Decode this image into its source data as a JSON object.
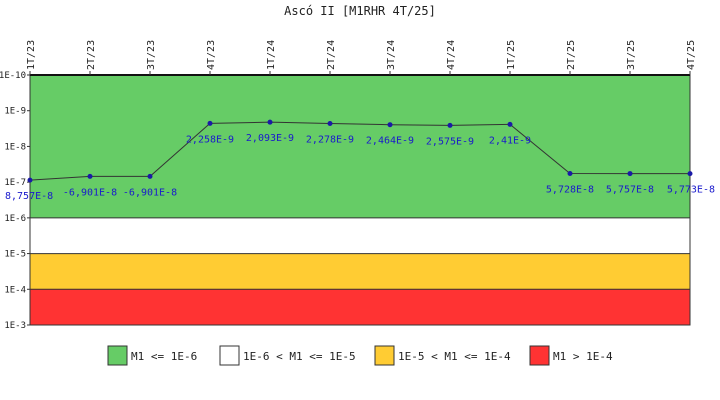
{
  "chart_data": {
    "type": "line",
    "title": "Ascó II [M1RHR 4T/25]",
    "x": [
      "1T/23",
      "2T/23",
      "3T/23",
      "4T/23",
      "1T/24",
      "2T/24",
      "3T/24",
      "4T/24",
      "1T/25",
      "2T/25",
      "3T/25",
      "4T/25"
    ],
    "values": [
      8.757e-08,
      -6.901e-08,
      -6.901e-08,
      2.258e-09,
      2.093e-09,
      2.278e-09,
      2.464e-09,
      2.575e-09,
      2.41e-09,
      5.728e-08,
      5.757e-08,
      5.773e-08
    ],
    "point_labels": [
      "8,757E-8",
      "-6,901E-8",
      "-6,901E-8",
      "2,258E-9",
      "2,093E-9",
      "2,278E-9",
      "2,464E-9",
      "2,575E-9",
      "2,41E-9",
      "5,728E-8",
      "5,757E-8",
      "5,773E-8"
    ],
    "y_scale": "log",
    "y_ticks": [
      "1E-10",
      "1E-9",
      "1E-8",
      "1E-7",
      "1E-6",
      "1E-5",
      "1E-4",
      "1E-3"
    ],
    "bands": [
      {
        "label": "M1 <= 1E-6",
        "from": "1E-10",
        "to": "1E-6",
        "color": "#66cc66"
      },
      {
        "label": "1E-6 < M1 <= 1E-5",
        "from": "1E-6",
        "to": "1E-5",
        "color": "#ffffff"
      },
      {
        "label": "1E-5 < M1 <= 1E-4",
        "from": "1E-5",
        "to": "1E-4",
        "color": "#ffcc33"
      },
      {
        "label": "M1 > 1E-4",
        "from": "1E-4",
        "to": "1E-3",
        "color": "#ff3333"
      }
    ],
    "line_color": "#333333",
    "point_color": "#1a1aa6",
    "label_color": "#1a1acc",
    "legend_position": "bottom"
  }
}
